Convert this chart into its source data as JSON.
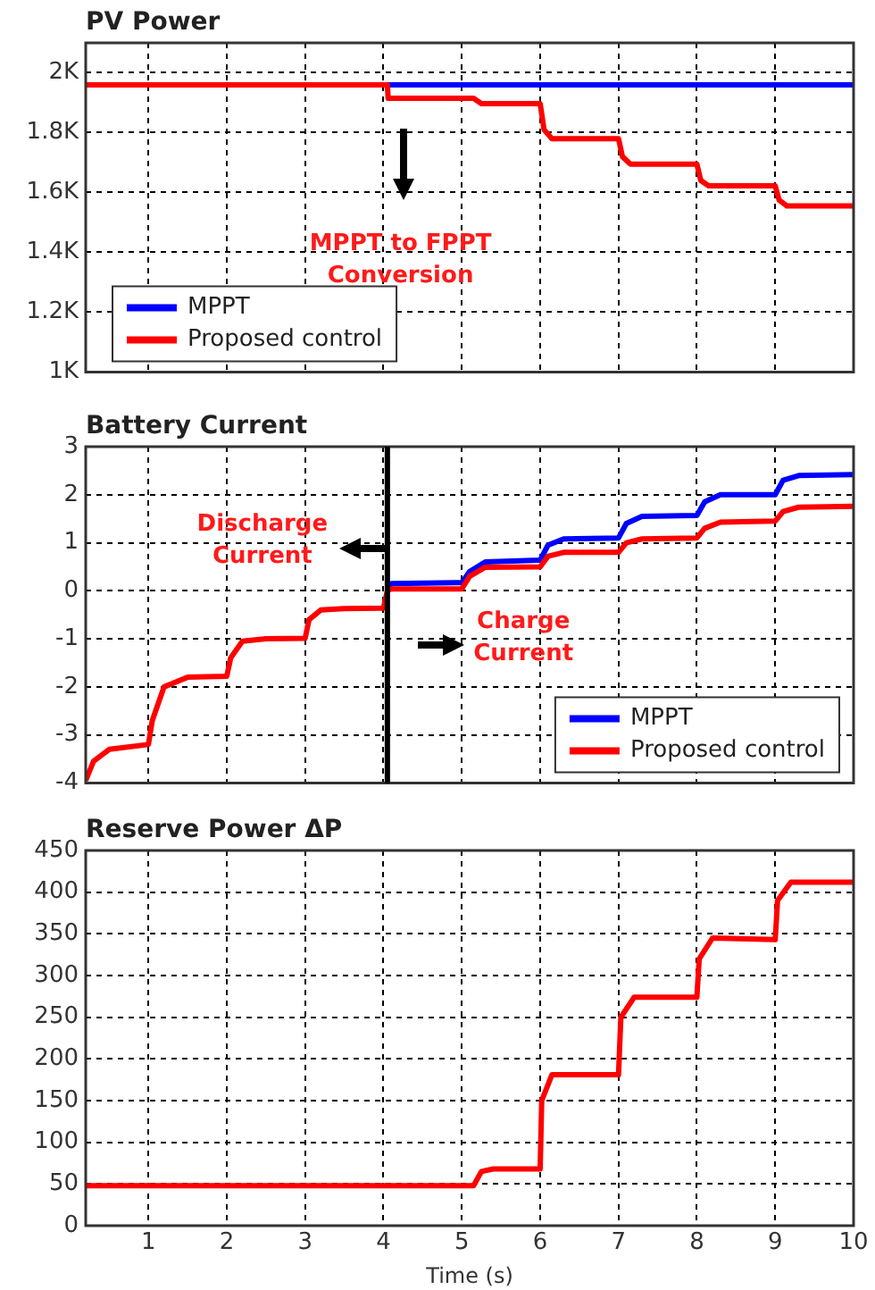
{
  "chart_data": [
    {
      "type": "line",
      "title": "PV Power",
      "xlim": [
        0.2,
        10
      ],
      "xticks": [
        1,
        2,
        3,
        4,
        5,
        6,
        7,
        8,
        9,
        10
      ],
      "ylim": [
        1000,
        2100
      ],
      "yticks": [
        {
          "value": 1000,
          "label": "1K"
        },
        {
          "value": 1200,
          "label": "1.2K"
        },
        {
          "value": 1400,
          "label": "1.4K"
        },
        {
          "value": 1600,
          "label": "1.6K"
        },
        {
          "value": 1800,
          "label": "1.8K"
        },
        {
          "value": 2000,
          "label": "2K"
        }
      ],
      "tick_labels": "y",
      "grid": true,
      "legend": "bottom left",
      "x": [
        0.2,
        4.05,
        4.06,
        4.5,
        5.15,
        5.25,
        6.0,
        6.05,
        6.15,
        7.0,
        7.05,
        7.15,
        8.0,
        8.05,
        8.15,
        9.0,
        9.05,
        9.15,
        10
      ],
      "series": [
        {
          "name": "MPPT",
          "color": "#0000ff",
          "values": [
            null,
            1960,
            1960,
            1960,
            1960,
            1960,
            1960,
            1960,
            1960,
            1960,
            1960,
            1960,
            1960,
            1960,
            1960,
            1960,
            1960,
            1960,
            1960
          ]
        },
        {
          "name": "Proposed control",
          "color": "#ff0000",
          "values": [
            1960,
            1960,
            1915,
            1915,
            1915,
            1897,
            1897,
            1810,
            1780,
            1780,
            1720,
            1695,
            1695,
            1640,
            1622,
            1622,
            1575,
            1555,
            1555
          ]
        }
      ],
      "annotations": [
        "MPPT to FPPT Conversion"
      ]
    },
    {
      "type": "line",
      "title": "Battery Current",
      "xlim": [
        0.2,
        10
      ],
      "xticks": [
        1,
        2,
        3,
        4,
        5,
        6,
        7,
        8,
        9,
        10
      ],
      "ylim": [
        -4,
        3
      ],
      "yticks": [
        -4,
        -3,
        -2,
        -1,
        0,
        1,
        2,
        3
      ],
      "tick_labels": "y",
      "grid": true,
      "legend": "bottom right",
      "x": [
        0.2,
        0.3,
        0.5,
        1.0,
        1.05,
        1.2,
        1.5,
        2.0,
        2.05,
        2.2,
        2.5,
        3.0,
        3.05,
        3.2,
        3.5,
        4.0,
        4.05,
        4.1,
        5.0,
        5.1,
        5.3,
        6.0,
        6.1,
        6.3,
        7.0,
        7.1,
        7.3,
        8.0,
        8.1,
        8.3,
        9.0,
        9.1,
        9.3,
        10
      ],
      "series": [
        {
          "name": "MPPT",
          "color": "#0000ff",
          "values": [
            null,
            null,
            null,
            null,
            null,
            null,
            null,
            null,
            null,
            null,
            null,
            null,
            null,
            null,
            null,
            null,
            0.0,
            0.15,
            0.17,
            0.4,
            0.6,
            0.64,
            0.95,
            1.08,
            1.1,
            1.4,
            1.55,
            1.57,
            1.85,
            2.0,
            2.0,
            2.3,
            2.4,
            2.42
          ]
        },
        {
          "name": "Proposed control",
          "color": "#ff0000",
          "values": [
            -3.95,
            -3.55,
            -3.3,
            -3.2,
            -2.7,
            -2.0,
            -1.8,
            -1.78,
            -1.4,
            -1.05,
            -1.0,
            -0.99,
            -0.6,
            -0.4,
            -0.37,
            -0.36,
            0.0,
            0.04,
            0.04,
            0.3,
            0.49,
            0.5,
            0.72,
            0.8,
            0.8,
            1.0,
            1.08,
            1.1,
            1.3,
            1.43,
            1.45,
            1.65,
            1.74,
            1.76
          ]
        }
      ],
      "ref_lines": [
        {
          "axis": "x",
          "value": 4.05,
          "color": "#000000"
        }
      ],
      "annotations": [
        "Discharge Current",
        "Charge Current"
      ]
    },
    {
      "type": "line",
      "title": "Reserve Power ΔP",
      "xlabel": "Time (s)",
      "xlim": [
        0.2,
        10
      ],
      "xticks": [
        1,
        2,
        3,
        4,
        5,
        6,
        7,
        8,
        9,
        10
      ],
      "ylim": [
        0,
        450
      ],
      "yticks": [
        0,
        50,
        100,
        150,
        200,
        250,
        300,
        350,
        400,
        450
      ],
      "grid": true,
      "x": [
        0.2,
        5.15,
        5.25,
        5.4,
        6.0,
        6.02,
        6.15,
        7.0,
        7.03,
        7.2,
        8.0,
        8.03,
        8.2,
        9.0,
        9.03,
        9.2,
        10
      ],
      "series": [
        {
          "color": "#ff0000",
          "values": [
            48,
            48,
            65,
            68,
            68,
            150,
            181,
            181,
            250,
            274,
            274,
            320,
            345,
            343,
            390,
            412,
            412
          ]
        }
      ]
    }
  ]
}
